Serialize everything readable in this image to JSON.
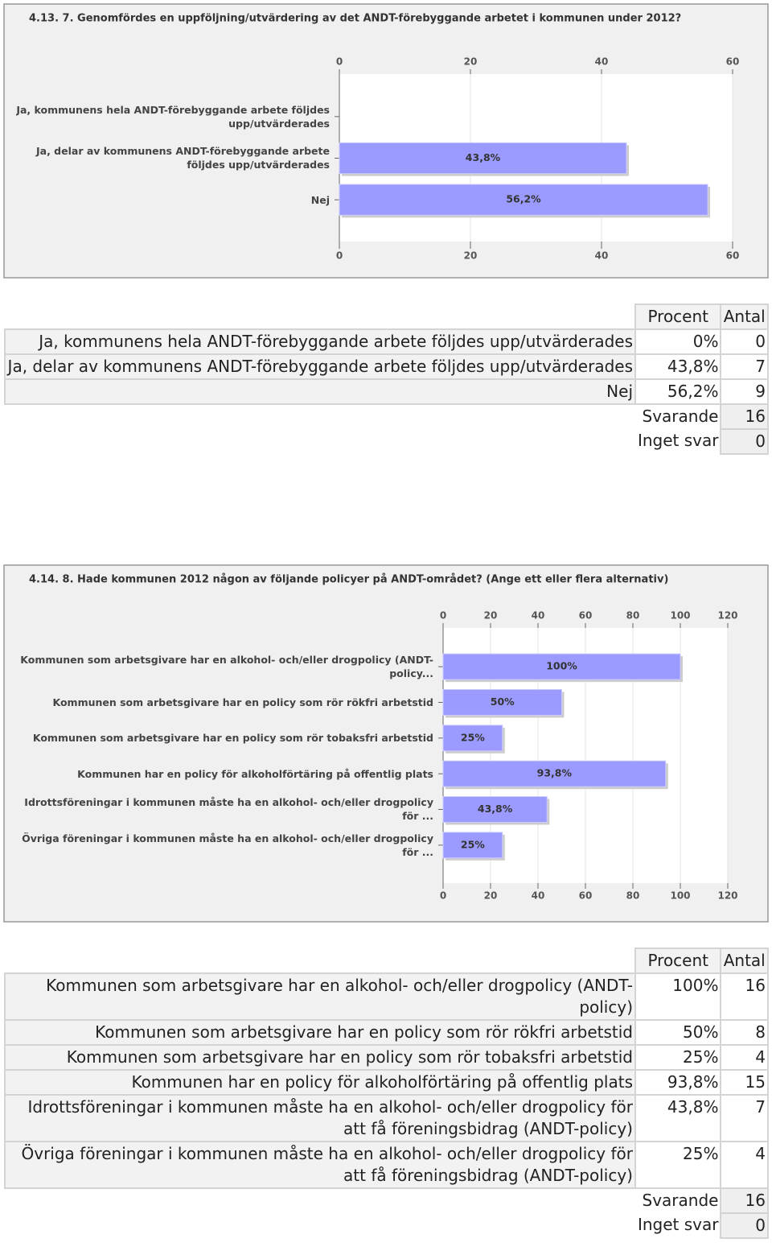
{
  "chart_data": [
    {
      "type": "bar",
      "title": "4.13. 7. Genomfördes en uppföljning/utvärdering av det ANDT-förebyggande arbetet i kommunen under 2012?",
      "categories": [
        "Ja, kommunens hela ANDT-förebyggande arbete följdes upp/utvärderades",
        "Ja, delar av kommunens ANDT-förebyggande arbete följdes upp/utvärderades",
        "Nej"
      ],
      "values": [
        0,
        43.8,
        56.2
      ],
      "value_labels": [
        null,
        "43,8%",
        "56,2%"
      ],
      "xlim": [
        0,
        60
      ],
      "xticks": [
        0,
        20,
        40,
        60
      ],
      "color": "#9b9bff",
      "grid": true
    },
    {
      "type": "bar",
      "title": "4.14. 8. Hade kommunen 2012 någon av följande policyer på ANDT-området? (Ange ett eller flera alternativ)",
      "categories": [
        "Kommunen som arbetsgivare har en alkohol- och/eller drogpolicy (ANDT-policy...",
        "Kommunen som arbetsgivare har en policy som rör rökfri arbetstid",
        "Kommunen som arbetsgivare har en policy som rör tobaksfri arbetstid",
        "Kommunen har en policy för alkoholförtäring på offentlig plats",
        "Idrottsföreningar i kommunen måste ha en alkohol- och/eller drogpolicy för ...",
        "Övriga föreningar i kommunen måste ha en alkohol- och/eller drogpolicy för ..."
      ],
      "values": [
        100,
        50,
        25,
        93.8,
        43.8,
        25
      ],
      "value_labels": [
        "100%",
        "50%",
        "25%",
        "93,8%",
        "43,8%",
        "25%"
      ],
      "xlim": [
        0,
        120
      ],
      "xticks": [
        0,
        20,
        40,
        60,
        80,
        100,
        120
      ],
      "color": "#9b9bff",
      "grid": true
    }
  ],
  "tables": [
    {
      "columns": [
        "Procent",
        "Antal"
      ],
      "rows": [
        {
          "label": "Ja, kommunens hela ANDT-förebyggande arbete följdes upp/utvärderades",
          "percent": "0%",
          "count": 0
        },
        {
          "label": "Ja, delar av kommunens ANDT-förebyggande arbete följdes upp/utvärderades",
          "percent": "43,8%",
          "count": 7
        },
        {
          "label": "Nej",
          "percent": "56,2%",
          "count": 9
        }
      ],
      "totals": [
        {
          "label": "Svarande",
          "count": 16
        },
        {
          "label": "Inget svar",
          "count": 0
        }
      ]
    },
    {
      "columns": [
        "Procent",
        "Antal"
      ],
      "rows": [
        {
          "label": "Kommunen som arbetsgivare har en alkohol- och/eller drogpolicy (ANDT-policy)",
          "percent": "100%",
          "count": 16
        },
        {
          "label": "Kommunen som arbetsgivare har en policy som rör rökfri arbetstid",
          "percent": "50%",
          "count": 8
        },
        {
          "label": "Kommunen som arbetsgivare har en policy som rör tobaksfri arbetstid",
          "percent": "25%",
          "count": 4
        },
        {
          "label": "Kommunen har en policy för alkoholförtäring på offentlig plats",
          "percent": "93,8%",
          "count": 15
        },
        {
          "label": "Idrottsföreningar i kommunen måste ha en alkohol- och/eller drogpolicy för att få föreningsbidrag (ANDT-policy)",
          "percent": "43,8%",
          "count": 7
        },
        {
          "label": "Övriga föreningar i kommunen måste ha en alkohol- och/eller drogpolicy för att få föreningsbidrag (ANDT-policy)",
          "percent": "25%",
          "count": 4
        }
      ],
      "totals": [
        {
          "label": "Svarande",
          "count": 16
        },
        {
          "label": "Inget svar",
          "count": 0
        }
      ]
    }
  ]
}
